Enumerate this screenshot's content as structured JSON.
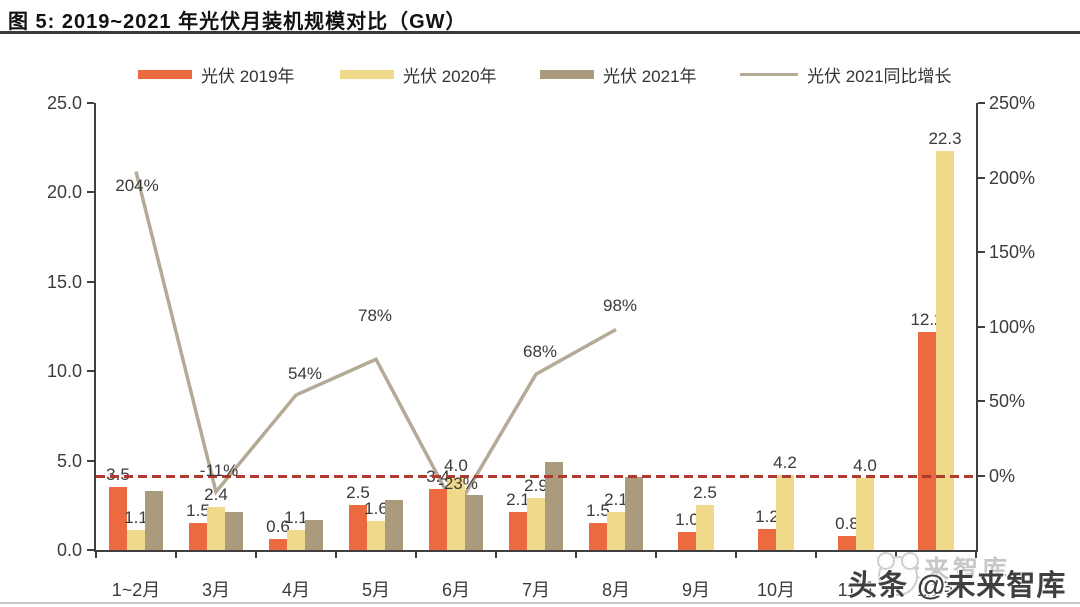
{
  "page": {
    "title": "图 5: 2019~2021 年光伏月装机规模对比（GW）"
  },
  "legend": [
    {
      "label": "光伏 2019年",
      "type": "bar",
      "color": "#eb6a3f"
    },
    {
      "label": "光伏 2020年",
      "type": "bar",
      "color": "#f0d98a"
    },
    {
      "label": "光伏 2021年",
      "type": "bar",
      "color": "#ab9b7d"
    },
    {
      "label": "光伏 2021同比增长",
      "type": "line",
      "color": "#b4aa96"
    }
  ],
  "watermark": {
    "dark": "头条 @未来智库",
    "ghost": "未来智库"
  },
  "chart_data": {
    "type": "bar",
    "subtype": "grouped bars + line on secondary axis",
    "title": "2019~2021 年光伏月装机规模对比（GW）",
    "categories": [
      "1~2月",
      "3月",
      "4月",
      "5月",
      "6月",
      "7月",
      "8月",
      "9月",
      "10月",
      "11月",
      "12月"
    ],
    "series": [
      {
        "name": "光伏 2019年",
        "type": "bar",
        "axis": "left",
        "color": "#eb6a3f",
        "data_labels": true,
        "values": [
          3.5,
          1.5,
          0.6,
          2.5,
          3.4,
          2.1,
          1.5,
          1.0,
          1.2,
          0.8,
          12.2
        ]
      },
      {
        "name": "光伏 2020年",
        "type": "bar",
        "axis": "left",
        "color": "#f0d98a",
        "data_labels": true,
        "values": [
          1.1,
          2.4,
          1.1,
          1.6,
          4.0,
          2.9,
          2.1,
          2.5,
          4.2,
          4.0,
          22.3
        ]
      },
      {
        "name": "光伏 2021年",
        "type": "bar",
        "axis": "left",
        "color": "#ab9b7d",
        "data_labels": false,
        "values": [
          3.3,
          2.1,
          1.7,
          2.8,
          3.1,
          4.9,
          4.1,
          null,
          null,
          null,
          null
        ]
      },
      {
        "name": "光伏 2021同比增长",
        "type": "line",
        "axis": "right",
        "color": "#b4aa96",
        "data_labels": true,
        "values": [
          204,
          -11,
          54,
          78,
          -23,
          68,
          98,
          null,
          null,
          null,
          null
        ],
        "labels": [
          "204%",
          "-11%",
          "54%",
          "78%",
          "-23%",
          "68%",
          "98%",
          null,
          null,
          null,
          null
        ]
      }
    ],
    "left_axis": {
      "min": 0,
      "max": 25,
      "step": 5,
      "tick_labels": [
        "0.0",
        "5.0",
        "10.0",
        "15.0",
        "20.0",
        "25.0"
      ]
    },
    "right_axis": {
      "min": -50,
      "max": 250,
      "step": 50,
      "tick_labels": [
        "0%",
        "50%",
        "100%",
        "150%",
        "200%",
        "250%"
      ]
    },
    "zero_line": {
      "axis": "right",
      "value": 0,
      "style": "dashed",
      "color": "#b03a2e"
    },
    "grid": "off",
    "legend_position": "top"
  }
}
